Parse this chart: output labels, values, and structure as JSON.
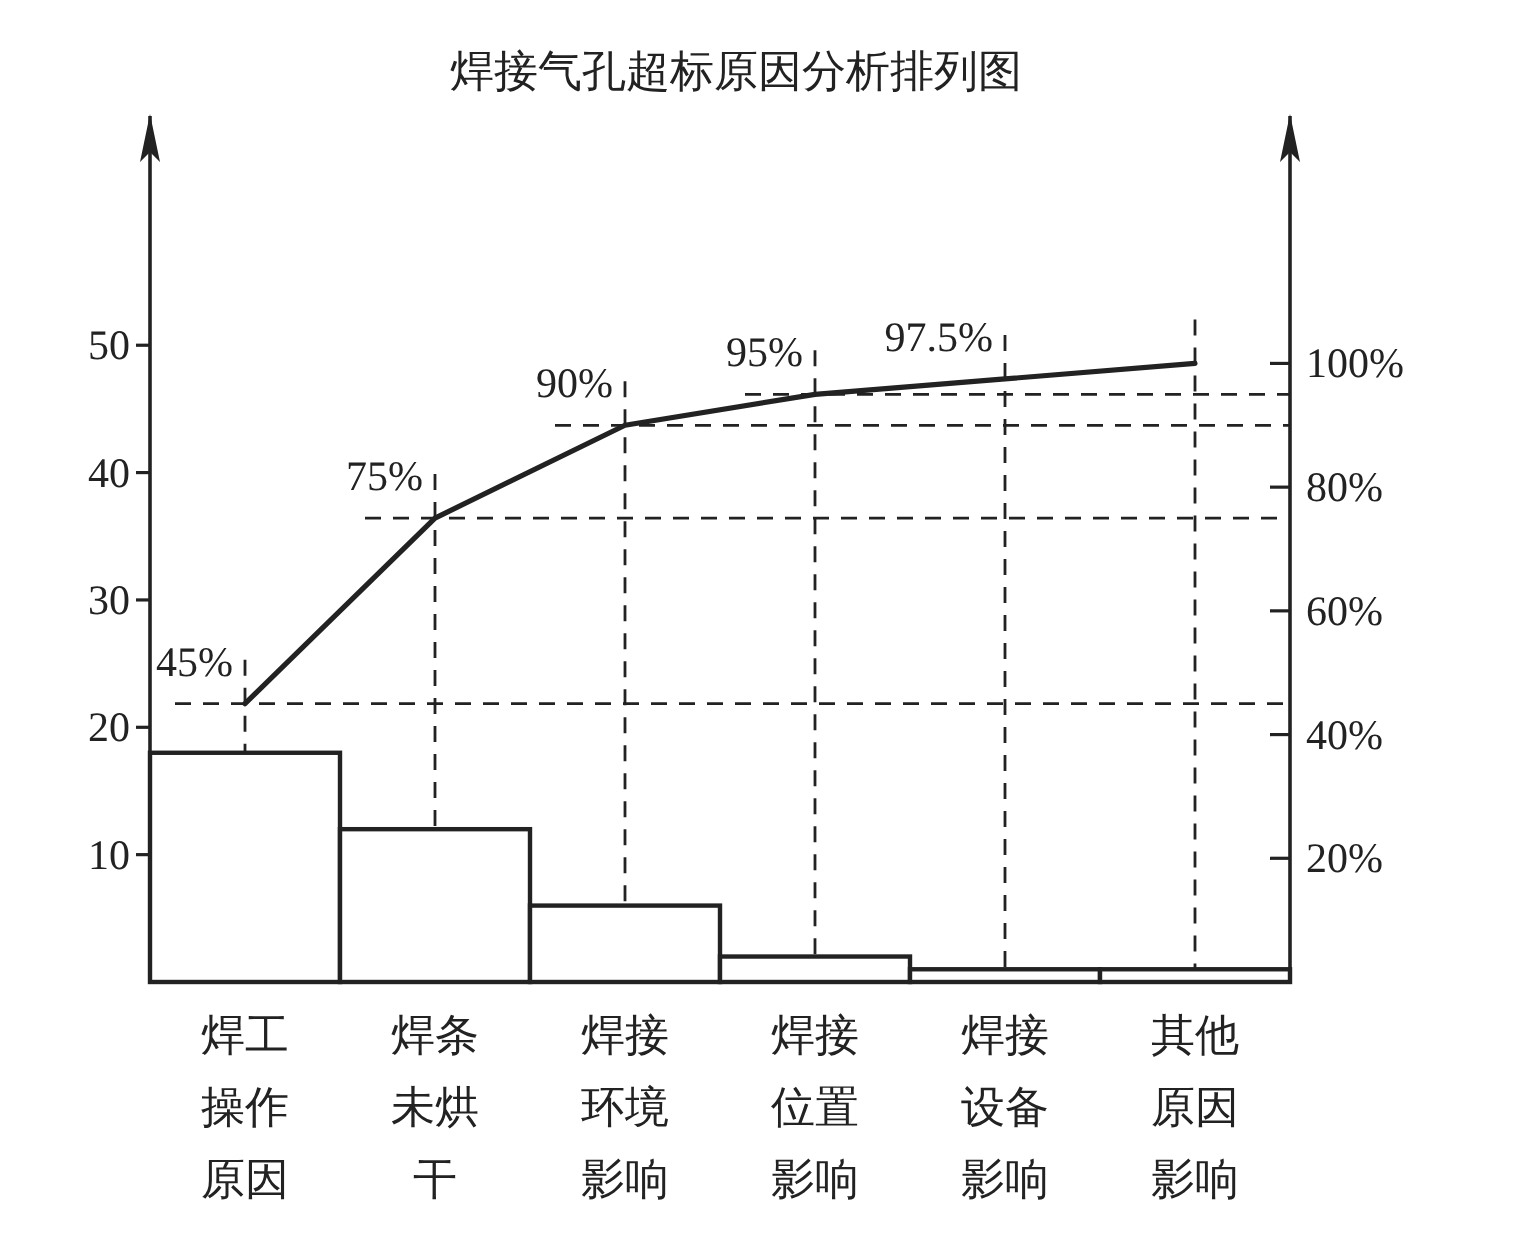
{
  "chart_data": {
    "type": "bar",
    "title": "焊接气孔超标原因分析排列图",
    "categories": [
      "焊工操作原因",
      "焊条未烘干",
      "焊接环境影响",
      "焊接位置影响",
      "焊接设备影响",
      "其他原因影响"
    ],
    "series": [
      {
        "color": "#ffffff",
        "values": [
          18,
          12,
          6,
          2,
          1,
          1
        ]
      },
      {
        "type": "line",
        "axis": "y2",
        "color": "#222222",
        "values": [
          45,
          75,
          90,
          95,
          97.5,
          100
        ],
        "value_labels": [
          "45%",
          "75%",
          "90%",
          "95%",
          "97.5%",
          null
        ]
      }
    ],
    "ylim": [
      0,
      68
    ],
    "yticks": [
      10,
      20,
      30,
      40,
      50
    ],
    "y2lim": [
      0,
      140
    ],
    "y2ticks": [
      {
        "value": 20,
        "label": "20%"
      },
      {
        "value": 40,
        "label": "40%"
      },
      {
        "value": 60,
        "label": "60%"
      },
      {
        "value": 80,
        "label": "80%"
      },
      {
        "value": 100,
        "label": "100%"
      }
    ]
  }
}
